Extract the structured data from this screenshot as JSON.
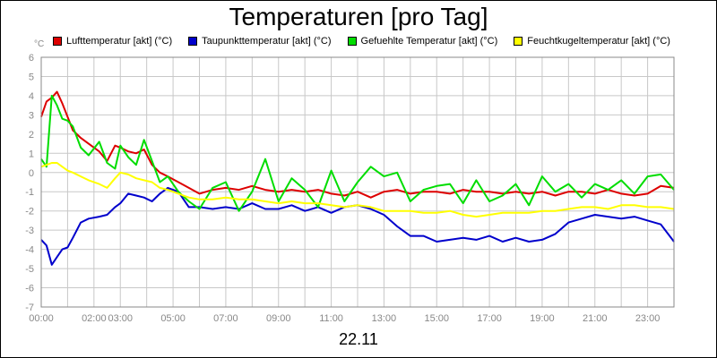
{
  "chart_data": {
    "type": "line",
    "title": "Temperaturen [pro Tag]",
    "y_unit": "°C",
    "date": "22.11",
    "ylim": [
      -7,
      6
    ],
    "y_ticks": [
      "6",
      "5",
      "4",
      "3",
      "2",
      "1",
      "0",
      "-1",
      "-2",
      "-3",
      "-4",
      "-5",
      "-6",
      "-7"
    ],
    "xlim_hours": [
      0,
      24
    ],
    "x_ticks": [
      {
        "label": "00:00",
        "hour": 0
      },
      {
        "label": "02:00",
        "hour": 2
      },
      {
        "label": "03:00",
        "hour": 3
      },
      {
        "label": "05:00",
        "hour": 5
      },
      {
        "label": "07:00",
        "hour": 7
      },
      {
        "label": "09:00",
        "hour": 9
      },
      {
        "label": "11:00",
        "hour": 11
      },
      {
        "label": "13:00",
        "hour": 13
      },
      {
        "label": "15:00",
        "hour": 15
      },
      {
        "label": "17:00",
        "hour": 17
      },
      {
        "label": "19:00",
        "hour": 19
      },
      {
        "label": "21:00",
        "hour": 21
      },
      {
        "label": "23:00",
        "hour": 23
      }
    ],
    "grid": true,
    "legend_position": "top",
    "series": [
      {
        "name": "Lufttemperatur [akt] (°C)",
        "color": "#dd0000",
        "x": [
          0,
          0.2,
          0.4,
          0.6,
          0.8,
          1.0,
          1.2,
          1.5,
          1.8,
          2.2,
          2.5,
          2.8,
          3.0,
          3.3,
          3.6,
          3.9,
          4.2,
          4.5,
          4.8,
          5.2,
          5.6,
          6.0,
          6.5,
          7.0,
          7.5,
          8.0,
          8.5,
          9.0,
          9.5,
          10.0,
          10.5,
          11.0,
          11.5,
          12.0,
          12.5,
          13.0,
          13.5,
          14.0,
          14.5,
          15.0,
          15.5,
          16.0,
          16.5,
          17.0,
          17.5,
          18.0,
          18.5,
          19.0,
          19.5,
          20.0,
          20.5,
          21.0,
          21.5,
          22.0,
          22.5,
          23.0,
          23.5,
          24.0
        ],
        "y": [
          2.9,
          3.7,
          3.9,
          4.2,
          3.6,
          2.9,
          2.2,
          1.8,
          1.5,
          1.1,
          0.6,
          1.4,
          1.3,
          1.1,
          1.0,
          1.2,
          0.4,
          0.0,
          -0.2,
          -0.5,
          -0.8,
          -1.1,
          -0.9,
          -0.8,
          -0.9,
          -0.7,
          -0.9,
          -1.0,
          -0.9,
          -1.0,
          -0.9,
          -1.1,
          -1.2,
          -1.0,
          -1.3,
          -1.0,
          -0.9,
          -1.1,
          -1.0,
          -1.0,
          -1.1,
          -0.9,
          -1.0,
          -1.0,
          -1.1,
          -1.0,
          -1.1,
          -1.0,
          -1.2,
          -1.0,
          -1.0,
          -1.1,
          -0.9,
          -1.1,
          -1.2,
          -1.1,
          -0.7,
          -0.8
        ]
      },
      {
        "name": "Taupunkttemperatur [akt] (°C)",
        "color": "#0000cc",
        "x": [
          0,
          0.2,
          0.4,
          0.6,
          0.8,
          1.0,
          1.2,
          1.5,
          1.8,
          2.2,
          2.5,
          2.8,
          3.0,
          3.3,
          3.6,
          3.9,
          4.2,
          4.5,
          4.8,
          5.2,
          5.6,
          6.0,
          6.5,
          7.0,
          7.5,
          8.0,
          8.5,
          9.0,
          9.5,
          10.0,
          10.5,
          11.0,
          11.5,
          12.0,
          12.5,
          13.0,
          13.5,
          14.0,
          14.5,
          15.0,
          15.5,
          16.0,
          16.5,
          17.0,
          17.5,
          18.0,
          18.5,
          19.0,
          19.5,
          20.0,
          20.5,
          21.0,
          21.5,
          22.0,
          22.5,
          23.0,
          23.5,
          24.0
        ],
        "y": [
          -3.5,
          -3.8,
          -4.8,
          -4.4,
          -4.0,
          -3.9,
          -3.4,
          -2.6,
          -2.4,
          -2.3,
          -2.2,
          -1.8,
          -1.6,
          -1.1,
          -1.2,
          -1.3,
          -1.5,
          -1.1,
          -0.8,
          -1.0,
          -1.8,
          -1.8,
          -1.9,
          -1.8,
          -1.9,
          -1.6,
          -1.9,
          -1.9,
          -1.7,
          -2.0,
          -1.8,
          -2.1,
          -1.8,
          -1.7,
          -1.9,
          -2.2,
          -2.8,
          -3.3,
          -3.3,
          -3.6,
          -3.5,
          -3.4,
          -3.5,
          -3.3,
          -3.6,
          -3.4,
          -3.6,
          -3.5,
          -3.2,
          -2.6,
          -2.4,
          -2.2,
          -2.3,
          -2.4,
          -2.3,
          -2.5,
          -2.7,
          -3.6
        ]
      },
      {
        "name": "Gefuehlte Temperatur [akt] (°C)",
        "color": "#00dd00",
        "x": [
          0,
          0.2,
          0.4,
          0.6,
          0.8,
          1.0,
          1.2,
          1.5,
          1.8,
          2.2,
          2.5,
          2.8,
          3.0,
          3.3,
          3.6,
          3.9,
          4.2,
          4.5,
          4.8,
          5.2,
          5.6,
          6.0,
          6.5,
          7.0,
          7.5,
          8.0,
          8.5,
          9.0,
          9.5,
          10.0,
          10.5,
          11.0,
          11.5,
          12.0,
          12.5,
          13.0,
          13.5,
          14.0,
          14.5,
          15.0,
          15.5,
          16.0,
          16.5,
          17.0,
          17.5,
          18.0,
          18.5,
          19.0,
          19.5,
          20.0,
          20.5,
          21.0,
          21.5,
          22.0,
          22.5,
          23.0,
          23.5,
          24.0
        ],
        "y": [
          0.7,
          0.3,
          4.0,
          3.5,
          2.8,
          2.7,
          2.4,
          1.3,
          0.9,
          1.6,
          0.5,
          0.2,
          1.4,
          0.8,
          0.4,
          1.7,
          0.6,
          -0.5,
          -0.2,
          -1.0,
          -1.5,
          -1.9,
          -0.8,
          -0.5,
          -2.0,
          -1.0,
          0.7,
          -1.5,
          -0.3,
          -0.9,
          -1.8,
          0.1,
          -1.5,
          -0.5,
          0.3,
          -0.2,
          0.0,
          -1.5,
          -0.9,
          -0.7,
          -0.6,
          -1.6,
          -0.4,
          -1.5,
          -1.2,
          -0.6,
          -1.7,
          -0.2,
          -1.0,
          -0.6,
          -1.3,
          -0.6,
          -0.9,
          -0.4,
          -1.1,
          -0.2,
          -0.1,
          -0.9
        ]
      },
      {
        "name": "Feuchtkugeltemperatur [akt] (°C)",
        "color": "#ffff00",
        "x": [
          0,
          0.2,
          0.4,
          0.6,
          0.8,
          1.0,
          1.2,
          1.5,
          1.8,
          2.2,
          2.5,
          2.8,
          3.0,
          3.3,
          3.6,
          3.9,
          4.2,
          4.5,
          4.8,
          5.2,
          5.6,
          6.0,
          6.5,
          7.0,
          7.5,
          8.0,
          8.5,
          9.0,
          9.5,
          10.0,
          10.5,
          11.0,
          11.5,
          12.0,
          12.5,
          13.0,
          13.5,
          14.0,
          14.5,
          15.0,
          15.5,
          16.0,
          16.5,
          17.0,
          17.5,
          18.0,
          18.5,
          19.0,
          19.5,
          20.0,
          20.5,
          21.0,
          21.5,
          22.0,
          22.5,
          23.0,
          23.5,
          24.0
        ],
        "y": [
          0.3,
          0.4,
          0.5,
          0.5,
          0.3,
          0.1,
          0.0,
          -0.2,
          -0.4,
          -0.6,
          -0.8,
          -0.3,
          0.0,
          -0.1,
          -0.3,
          -0.4,
          -0.5,
          -0.8,
          -0.9,
          -1.1,
          -1.3,
          -1.4,
          -1.4,
          -1.3,
          -1.4,
          -1.4,
          -1.5,
          -1.6,
          -1.5,
          -1.6,
          -1.6,
          -1.7,
          -1.8,
          -1.7,
          -1.8,
          -2.0,
          -2.0,
          -2.0,
          -2.1,
          -2.1,
          -2.0,
          -2.2,
          -2.3,
          -2.2,
          -2.1,
          -2.1,
          -2.1,
          -2.0,
          -2.0,
          -1.9,
          -1.8,
          -1.8,
          -1.9,
          -1.7,
          -1.7,
          -1.8,
          -1.8,
          -1.9
        ]
      }
    ]
  }
}
